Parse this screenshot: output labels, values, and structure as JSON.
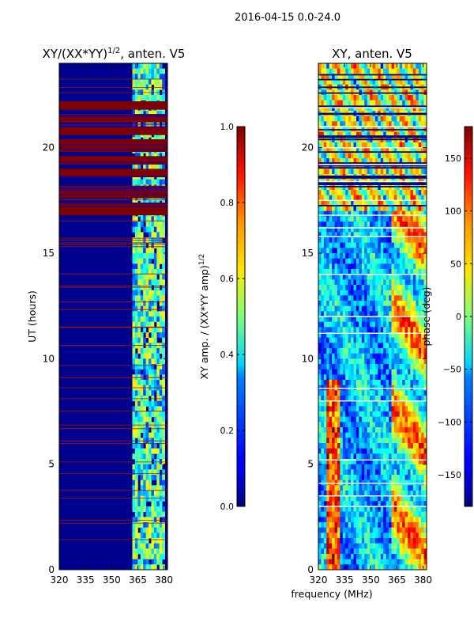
{
  "figure": {
    "suptitle": "2016-04-15 0.0-24.0",
    "shared_xlabel": "frequency (MHz)"
  },
  "chart_data": [
    {
      "type": "heatmap",
      "title": "XY/(XX*YY)^1/2, anten. V5",
      "title_main": "XY/(XX*YY)",
      "title_exp": "1/2",
      "title_tail": ", anten. V5",
      "xlabel": "frequency (MHz)",
      "ylabel": "UT (hours)",
      "xlim": [
        320,
        382
      ],
      "ylim": [
        0,
        24
      ],
      "xticks": [
        320,
        335,
        350,
        365,
        380
      ],
      "yticks": [
        0,
        5,
        10,
        15,
        20
      ],
      "colorbar": {
        "label": "XY amp. / (XX*YY amp)^1/2",
        "label_main": "XY amp. / (XX*YY amp)",
        "label_exp": "1/2",
        "range": [
          0.0,
          1.0
        ],
        "ticks": [
          "0.0",
          "0.2",
          "0.4",
          "0.6",
          "0.8",
          "1.0"
        ]
      },
      "saturated_bands_hours": [
        [
          16.8,
          17.4
        ],
        [
          17.6,
          18.2
        ],
        [
          18.6,
          19.0
        ],
        [
          19.2,
          19.6
        ],
        [
          19.8,
          20.4
        ],
        [
          20.6,
          21.0
        ],
        [
          21.2,
          21.6
        ],
        [
          21.8,
          22.2
        ]
      ],
      "bright_frequency_band_mhz": [
        362,
        380
      ]
    },
    {
      "type": "heatmap",
      "title": "XY, anten. V5",
      "xlabel": "frequency (MHz)",
      "ylabel": "phase (deg)",
      "xlim": [
        320,
        382
      ],
      "ylim": [
        0,
        24
      ],
      "xticks": [
        320,
        335,
        350,
        365,
        380
      ],
      "yticks": [
        0,
        5,
        10,
        15,
        20
      ],
      "colorbar": {
        "label": "phase (deg)",
        "range": [
          -180,
          180
        ],
        "ticks": [
          "-150",
          "-100",
          "-50",
          "0",
          "50",
          "100",
          "150"
        ]
      },
      "gap_lines_hours": [
        3.0,
        3.5,
        4.1,
        5.2,
        8.0,
        8.6,
        11.2,
        12.0,
        14.0,
        15.8,
        16.2,
        16.8,
        17.5,
        18.4,
        19.2,
        20.0,
        21.0,
        21.9
      ]
    }
  ]
}
